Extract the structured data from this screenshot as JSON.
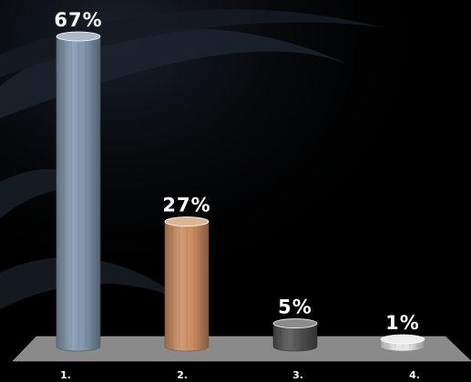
{
  "chart_data": {
    "type": "bar",
    "categories": [
      "1.",
      "2.",
      "3.",
      "4."
    ],
    "values": [
      67,
      27,
      5,
      1
    ],
    "value_labels": [
      "67%",
      "27%",
      "5%",
      "1%"
    ],
    "ylim": [
      0,
      70
    ],
    "grid": false,
    "legend": "none",
    "bar_colors": [
      "#7f94ab",
      "#c98b5e",
      "#4d4d4d",
      "#e3e3e3"
    ],
    "background": "#000000",
    "floor_color": "#8a8a8a"
  }
}
